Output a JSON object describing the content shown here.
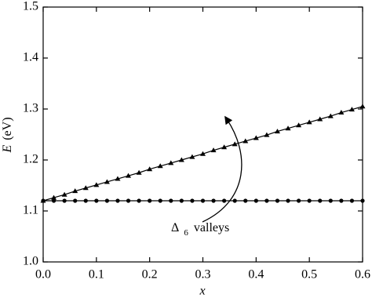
{
  "chart_data": {
    "type": "line",
    "ylabel_var": "E",
    "ylabel_unit": "(eV)",
    "xlabel": "x",
    "annotation": {
      "symbol": "Δ",
      "subscript": "6",
      "text": "valleys"
    },
    "x": [
      0,
      0.02,
      0.04,
      0.06,
      0.08,
      0.1,
      0.12,
      0.14,
      0.16,
      0.18,
      0.2,
      0.22,
      0.24,
      0.26,
      0.28,
      0.3,
      0.32,
      0.34,
      0.36,
      0.38,
      0.4,
      0.42,
      0.44,
      0.46,
      0.48,
      0.5,
      0.52,
      0.54,
      0.56,
      0.58,
      0.6
    ],
    "series": [
      {
        "color": "#000000",
        "marker": "triangle",
        "values": [
          1.12,
          1.126,
          1.132,
          1.139,
          1.145,
          1.151,
          1.157,
          1.163,
          1.169,
          1.175,
          1.182,
          1.188,
          1.194,
          1.2,
          1.206,
          1.212,
          1.219,
          1.225,
          1.231,
          1.237,
          1.243,
          1.249,
          1.256,
          1.262,
          1.268,
          1.274,
          1.28,
          1.286,
          1.293,
          1.299,
          1.305
        ]
      },
      {
        "color": "#000000",
        "marker": "circle",
        "values": [
          1.12,
          1.12,
          1.12,
          1.12,
          1.12,
          1.12,
          1.12,
          1.12,
          1.12,
          1.12,
          1.12,
          1.12,
          1.12,
          1.12,
          1.12,
          1.12,
          1.12,
          1.12,
          1.12,
          1.12,
          1.12,
          1.12,
          1.12,
          1.12,
          1.12,
          1.12,
          1.12,
          1.12,
          1.12,
          1.12,
          1.12
        ]
      }
    ],
    "xlim": [
      0,
      0.6
    ],
    "ylim": [
      1.0,
      1.5
    ],
    "xticks": [
      {
        "value": 0,
        "label": "0.0"
      },
      {
        "value": 0.1,
        "label": "0.1"
      },
      {
        "value": 0.2,
        "label": "0.2"
      },
      {
        "value": 0.3,
        "label": "0.3"
      },
      {
        "value": 0.4,
        "label": "0.4"
      },
      {
        "value": 0.5,
        "label": "0.5"
      },
      {
        "value": 0.6,
        "label": "0.6"
      }
    ],
    "yticks": [
      {
        "value": 1.0,
        "label": "1.0"
      },
      {
        "value": 1.1,
        "label": "1.1"
      },
      {
        "value": 1.2,
        "label": "1.2"
      },
      {
        "value": 1.3,
        "label": "1.3"
      },
      {
        "value": 1.4,
        "label": "1.4"
      },
      {
        "value": 1.5,
        "label": "1.5"
      }
    ],
    "grid": false
  }
}
